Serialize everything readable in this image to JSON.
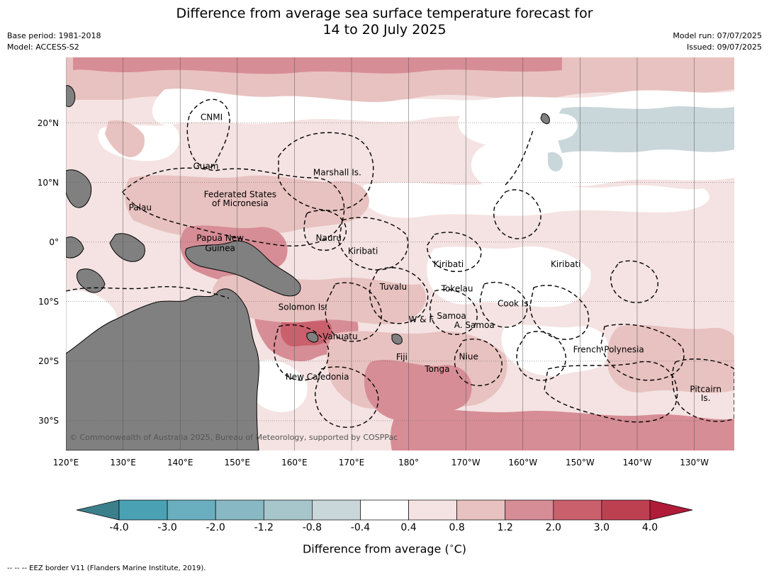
{
  "title": {
    "line1": "Difference from average sea surface temperature forecast for",
    "line2": "14 to 20 July 2025"
  },
  "meta": {
    "base_period": "Base period: 1981-2018",
    "model": "Model: ACCESS-S2",
    "model_run": "Model run: 07/07/2025",
    "issued": "Issued: 09/07/2025"
  },
  "map": {
    "lon_range": [
      120,
      237
    ],
    "lat_range": [
      -35,
      31
    ],
    "lon_ticks": [
      "120°E",
      "130°E",
      "140°E",
      "150°E",
      "160°E",
      "170°E",
      "180°",
      "170°W",
      "160°W",
      "150°W",
      "140°W",
      "130°W"
    ],
    "lat_ticks": [
      "20°N",
      "10°N",
      "0°",
      "10°S",
      "20°S",
      "30°S"
    ],
    "lat_tick_values": [
      20,
      10,
      0,
      -10,
      -20,
      -30
    ],
    "region_labels": [
      {
        "text": "CNMI",
        "lon": 145.5,
        "lat": 20.5
      },
      {
        "text": "Guam",
        "lon": 144.5,
        "lat": 12.3
      },
      {
        "text": "Marshall Is.",
        "lon": 167.5,
        "lat": 11.2
      },
      {
        "text": "Federated States",
        "lon": 150.5,
        "lat": 7.5
      },
      {
        "text": "of Micronesia",
        "lon": 150.5,
        "lat": 6.0
      },
      {
        "text": "Palau",
        "lon": 133,
        "lat": 5.3
      },
      {
        "text": "Papua New",
        "lon": 147,
        "lat": 0.2
      },
      {
        "text": "Guinea",
        "lon": 147,
        "lat": -1.5
      },
      {
        "text": "Nauru",
        "lon": 166,
        "lat": 0.2
      },
      {
        "text": "Kiribati",
        "lon": 172,
        "lat": -2.0
      },
      {
        "text": "Kiribati",
        "lon": -173,
        "lat": -4.2
      },
      {
        "text": "Kiribati",
        "lon": -152.5,
        "lat": -4.2
      },
      {
        "text": "Tuvalu",
        "lon": 177.3,
        "lat": -8.0
      },
      {
        "text": "Tokelau",
        "lon": -171.5,
        "lat": -8.3
      },
      {
        "text": "Cook Is.",
        "lon": -161.5,
        "lat": -10.8
      },
      {
        "text": "Solomon Is.",
        "lon": 161.5,
        "lat": -11.4
      },
      {
        "text": "Samoa",
        "lon": -172.5,
        "lat": -12.9
      },
      {
        "text": "W & F",
        "lon": -177.8,
        "lat": -13.5
      },
      {
        "text": "A. Samoa",
        "lon": -168.5,
        "lat": -14.4
      },
      {
        "text": "Vanuatu",
        "lon": 168,
        "lat": -16.3
      },
      {
        "text": "French Polynesia",
        "lon": -145,
        "lat": -18.5
      },
      {
        "text": "Fiji",
        "lon": 178.8,
        "lat": -19.8
      },
      {
        "text": "Niue",
        "lon": -169.5,
        "lat": -19.7
      },
      {
        "text": "Tonga",
        "lon": -175,
        "lat": -21.8
      },
      {
        "text": "New Caledonia",
        "lon": 164,
        "lat": -23.1
      },
      {
        "text": "Pitcairn",
        "lon": -128,
        "lat": -25.2
      },
      {
        "text": "Is.",
        "lon": -128,
        "lat": -26.7
      }
    ],
    "copyright": "© Commonwealth of Australia 2025, Bureau of Meteorology, supported by COSPPac"
  },
  "colorbar": {
    "ticks": [
      "-4.0",
      "-3.0",
      "-2.0",
      "-1.2",
      "-0.8",
      "-0.4",
      "0.4",
      "0.8",
      "1.2",
      "2.0",
      "3.0",
      "4.0"
    ],
    "colors": [
      "#3c7f8c",
      "#4aa1b4",
      "#6aafbf",
      "#88b8c4",
      "#a7c6cc",
      "#c9d6da",
      "#ffffff",
      "#f4e3e2",
      "#e8c2c0",
      "#d78d96",
      "#c9606c",
      "#bd4051",
      "#b01c38"
    ],
    "label": "Difference from average (",
    "label_unit": "∘",
    "label_end": "C)"
  },
  "footer": "--  --  -- EEZ border V11 (Flanders Marine Institute, 2019).",
  "colors": {
    "land": "#808080",
    "grid": "#555555"
  }
}
